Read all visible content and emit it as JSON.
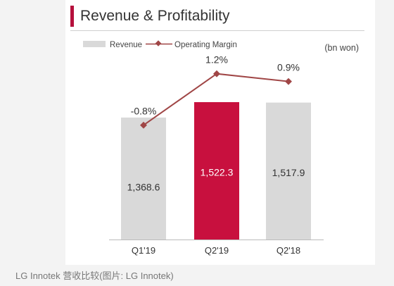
{
  "page": {
    "caption": "LG Innotek 营收比较(图片: LG Innotek)"
  },
  "chart_data": {
    "type": "bar",
    "title": "Revenue & Profitability",
    "unit": "(bn won)",
    "categories": [
      "Q1'19",
      "Q2'19",
      "Q2'18"
    ],
    "series": [
      {
        "name": "Revenue",
        "kind": "bar",
        "values": [
          1368.6,
          1522.3,
          1517.9
        ],
        "labels": [
          "1,368.6",
          "1,522.3",
          "1,517.9"
        ],
        "colors": [
          "#d9d9d9",
          "#c8103e",
          "#d9d9d9"
        ]
      },
      {
        "name": "Operating Margin",
        "kind": "line",
        "values": [
          -0.8,
          1.2,
          0.9
        ],
        "labels": [
          "-0.8%",
          "1.2%",
          "0.9%"
        ],
        "color": "#a04646"
      }
    ],
    "legend": "top-left",
    "grid": false
  }
}
